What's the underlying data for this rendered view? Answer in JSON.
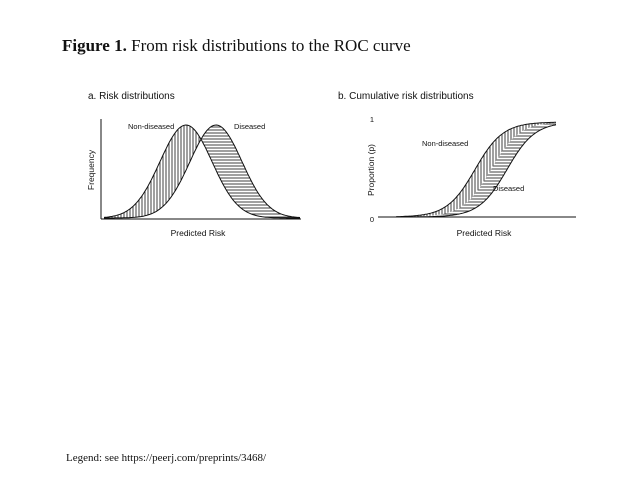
{
  "figure": {
    "label": "Figure 1.",
    "title": "From risk distributions to the ROC curve"
  },
  "legend_text": "Legend: see https://peerj.com/preprints/3468/",
  "colors": {
    "ink": "#111111",
    "background": "#ffffff"
  },
  "chart_data": [
    {
      "type": "area",
      "panel_title": "a.  Risk distributions",
      "xlabel": "Predicted Risk",
      "ylabel": "Frequency",
      "ticks": false,
      "grid": false,
      "series": [
        {
          "name": "Non-diseased",
          "shape": "bell curve",
          "peak": "left",
          "fill": "vertical hatching"
        },
        {
          "name": "Diseased",
          "shape": "bell curve",
          "peak": "right",
          "fill": "horizontal hatching"
        }
      ]
    },
    {
      "type": "area",
      "panel_title": "b.  Cumulative risk distributions",
      "xlabel": "Predicted Risk",
      "ylabel": "Proportion (p)",
      "y_ticks": [
        "0",
        "1"
      ],
      "ylim": [
        0,
        1
      ],
      "grid": false,
      "series": [
        {
          "name": "Non-diseased",
          "shape": "S-curve",
          "position": "left",
          "fill": "vertical hatching"
        },
        {
          "name": "Diseased",
          "shape": "S-curve",
          "position": "right",
          "fill": "horizontal hatching"
        }
      ]
    }
  ]
}
